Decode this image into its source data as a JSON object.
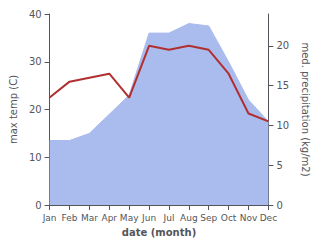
{
  "chart_data": {
    "type": "line",
    "categories": [
      "Jan",
      "Feb",
      "Mar",
      "Apr",
      "May",
      "Jun",
      "Jul",
      "Aug",
      "Sep",
      "Oct",
      "Nov",
      "Dec"
    ],
    "series": [
      {
        "type": "area",
        "color": "#aabbee",
        "values": [
          13.5,
          13.5,
          15.0,
          19.0,
          23.0,
          36.0,
          36.0,
          38.0,
          37.5,
          30.0,
          22.0,
          17.5
        ]
      },
      {
        "type": "line",
        "color": "#b03030",
        "axis": "y2",
        "values": [
          13.5,
          15.5,
          16.0,
          16.5,
          13.5,
          20.0,
          19.5,
          20.0,
          19.5,
          16.5,
          11.5,
          10.5
        ]
      }
    ],
    "xlabel": "date (month)",
    "ylabel": "max temp (C)",
    "y2label": "med. precipitation (kg/m2)",
    "ylim": [
      0,
      40
    ],
    "yticks": [
      0,
      10,
      20,
      30,
      40
    ],
    "y2lim": [
      0,
      24
    ],
    "y2ticks": [
      0,
      5,
      10,
      15,
      20
    ],
    "grid": false
  }
}
